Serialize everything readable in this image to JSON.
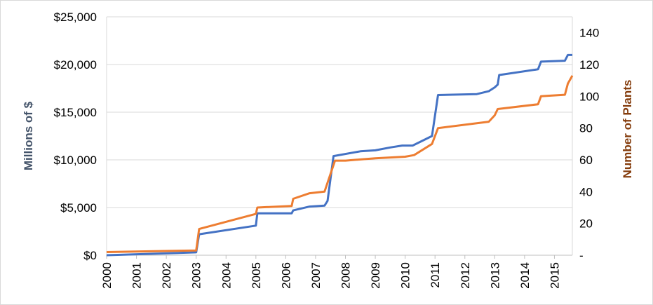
{
  "chart_data": {
    "type": "line",
    "x_ticks": [
      "2000",
      "2001",
      "2002",
      "2003",
      "2004",
      "2005",
      "2006",
      "2007",
      "2008",
      "2009",
      "2010",
      "2011",
      "2012",
      "2013",
      "2014",
      "2015"
    ],
    "xlim": [
      2000,
      2015.6
    ],
    "y_left": {
      "label": "Millions of $",
      "ylim": [
        0,
        25000
      ],
      "ticks": [
        0,
        5000,
        10000,
        15000,
        20000,
        25000
      ],
      "tick_labels": [
        "$0",
        "$5,000",
        "$10,000",
        "$15,000",
        "$20,000",
        "$25,000"
      ],
      "color": "#44546A"
    },
    "y_right": {
      "label": "Number of Plants",
      "ylim": [
        0,
        150
      ],
      "ticks": [
        0,
        20,
        40,
        60,
        80,
        100,
        120,
        140
      ],
      "tick_labels": [
        "-",
        "20",
        "40",
        "60",
        "80",
        "100",
        "120",
        "140"
      ],
      "color": "#843C0C"
    },
    "grid": true,
    "series": [
      {
        "axis": "left",
        "color": "#4472C4",
        "points": [
          [
            2000.0,
            0
          ],
          [
            2003.0,
            300
          ],
          [
            2003.1,
            2200
          ],
          [
            2005.0,
            3100
          ],
          [
            2005.05,
            4400
          ],
          [
            2006.2,
            4400
          ],
          [
            2006.25,
            4700
          ],
          [
            2006.8,
            5100
          ],
          [
            2007.3,
            5200
          ],
          [
            2007.4,
            5700
          ],
          [
            2007.6,
            10400
          ],
          [
            2008.5,
            10900
          ],
          [
            2009.0,
            11000
          ],
          [
            2009.5,
            11300
          ],
          [
            2009.9,
            11500
          ],
          [
            2010.25,
            11500
          ],
          [
            2010.9,
            12500
          ],
          [
            2011.1,
            16800
          ],
          [
            2012.4,
            16900
          ],
          [
            2012.8,
            17200
          ],
          [
            2013.0,
            17600
          ],
          [
            2013.1,
            17900
          ],
          [
            2013.15,
            18900
          ],
          [
            2014.45,
            19500
          ],
          [
            2014.55,
            20300
          ],
          [
            2015.35,
            20400
          ],
          [
            2015.45,
            21000
          ],
          [
            2015.6,
            21000
          ]
        ]
      },
      {
        "axis": "right",
        "color": "#ED7D31",
        "points": [
          [
            2000.0,
            2
          ],
          [
            2003.0,
            3
          ],
          [
            2003.1,
            16.5
          ],
          [
            2005.0,
            26
          ],
          [
            2005.05,
            30
          ],
          [
            2006.2,
            31
          ],
          [
            2006.25,
            35.5
          ],
          [
            2006.8,
            39
          ],
          [
            2007.3,
            40
          ],
          [
            2007.65,
            59.5
          ],
          [
            2008.0,
            59.5
          ],
          [
            2009.0,
            61
          ],
          [
            2010.0,
            62
          ],
          [
            2010.3,
            63
          ],
          [
            2010.9,
            70
          ],
          [
            2011.1,
            80
          ],
          [
            2012.8,
            84
          ],
          [
            2013.0,
            88
          ],
          [
            2013.1,
            92
          ],
          [
            2014.45,
            95
          ],
          [
            2014.55,
            100
          ],
          [
            2015.35,
            101
          ],
          [
            2015.45,
            108
          ],
          [
            2015.6,
            113
          ]
        ]
      }
    ]
  }
}
